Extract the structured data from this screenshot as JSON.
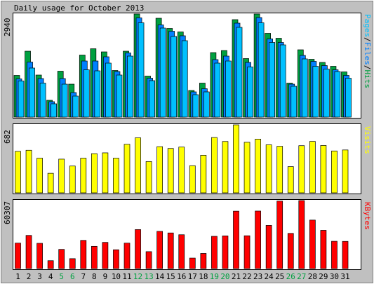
{
  "title": "Daily usage for October 2013",
  "colors": {
    "background": "#c0c0c0",
    "panel": "#ffffff",
    "hits": "#00a040",
    "files": "#0080ff",
    "pages": "#00c0ff",
    "visits": "#ffff00",
    "kbytes": "#ff0000",
    "weekday_label": "#000000",
    "weekend_label": "#00a040"
  },
  "chart_data": [
    {
      "type": "bar",
      "name": "hits_files_pages",
      "ymax_label": "2940",
      "legend": {
        "pages": "Pages",
        "sep1": "/",
        "files": "Files",
        "sep2": "/",
        "hits": "Hits"
      },
      "ylim": [
        0,
        2940
      ],
      "categories": [
        "1",
        "2",
        "3",
        "4",
        "5",
        "6",
        "7",
        "8",
        "9",
        "10",
        "11",
        "12",
        "13",
        "14",
        "15",
        "16",
        "17",
        "18",
        "19",
        "20",
        "21",
        "22",
        "23",
        "24",
        "25",
        "26",
        "27",
        "28",
        "29",
        "30",
        "31"
      ],
      "series": [
        {
          "name": "Hits",
          "values": [
            1190,
            1880,
            1200,
            480,
            1310,
            940,
            1770,
            1950,
            1860,
            1330,
            1880,
            2940,
            1170,
            2820,
            2530,
            2430,
            760,
            970,
            1840,
            1900,
            2780,
            1670,
            2940,
            2390,
            2250,
            970,
            1920,
            1650,
            1560,
            1450,
            1290
          ]
        },
        {
          "name": "Files",
          "values": [
            1090,
            1570,
            1100,
            440,
            1100,
            700,
            1600,
            1600,
            1720,
            1300,
            1830,
            2830,
            1110,
            2630,
            2450,
            2320,
            720,
            810,
            1640,
            1740,
            2680,
            1560,
            2840,
            2230,
            2130,
            940,
            1760,
            1590,
            1470,
            1350,
            1190
          ]
        },
        {
          "name": "Pages",
          "values": [
            1030,
            1400,
            970,
            380,
            940,
            600,
            1350,
            1320,
            1540,
            1200,
            1740,
            2690,
            1040,
            2540,
            2300,
            2180,
            640,
            720,
            1540,
            1600,
            2560,
            1430,
            2690,
            2130,
            2060,
            880,
            1660,
            1450,
            1370,
            1300,
            1110
          ]
        }
      ]
    },
    {
      "type": "bar",
      "name": "visits",
      "ymax_label": "682",
      "legend": "Visits",
      "ylim": [
        0,
        682
      ],
      "categories": [
        "1",
        "2",
        "3",
        "4",
        "5",
        "6",
        "7",
        "8",
        "9",
        "10",
        "11",
        "12",
        "13",
        "14",
        "15",
        "16",
        "17",
        "18",
        "19",
        "20",
        "21",
        "22",
        "23",
        "24",
        "25",
        "26",
        "27",
        "28",
        "29",
        "30",
        "31"
      ],
      "series": [
        {
          "name": "Visits",
          "values": [
            416,
            427,
            348,
            196,
            338,
            269,
            348,
            393,
            401,
            348,
            487,
            552,
            314,
            463,
            445,
            459,
            272,
            377,
            555,
            515,
            682,
            507,
            539,
            482,
            467,
            263,
            473,
            516,
            475,
            420,
            430
          ]
        }
      ]
    },
    {
      "type": "bar",
      "name": "kbytes",
      "ymax_label": "60307",
      "legend": "KBytes",
      "ylim": [
        0,
        60307
      ],
      "categories": [
        "1",
        "2",
        "3",
        "4",
        "5",
        "6",
        "7",
        "8",
        "9",
        "10",
        "11",
        "12",
        "13",
        "14",
        "15",
        "16",
        "17",
        "18",
        "19",
        "20",
        "21",
        "22",
        "23",
        "24",
        "25",
        "26",
        "27",
        "28",
        "29",
        "30",
        "31"
      ],
      "series": [
        {
          "name": "KBytes",
          "values": [
            22600,
            29400,
            22400,
            7000,
            17000,
            8800,
            25000,
            19700,
            23200,
            16700,
            22600,
            34600,
            15000,
            33000,
            31600,
            30000,
            9300,
            13400,
            28600,
            29000,
            50900,
            29100,
            51000,
            38300,
            59800,
            31200,
            60307,
            43000,
            33900,
            24200,
            24100
          ]
        }
      ]
    }
  ],
  "x_labels": [
    {
      "text": "1",
      "weekend": false
    },
    {
      "text": "2",
      "weekend": false
    },
    {
      "text": "3",
      "weekend": false
    },
    {
      "text": "4",
      "weekend": false
    },
    {
      "text": "5",
      "weekend": true
    },
    {
      "text": "6",
      "weekend": true
    },
    {
      "text": "7",
      "weekend": false
    },
    {
      "text": "8",
      "weekend": false
    },
    {
      "text": "9",
      "weekend": false
    },
    {
      "text": "10",
      "weekend": false
    },
    {
      "text": "11",
      "weekend": false
    },
    {
      "text": "12",
      "weekend": true
    },
    {
      "text": "13",
      "weekend": true
    },
    {
      "text": "14",
      "weekend": false
    },
    {
      "text": "15",
      "weekend": false
    },
    {
      "text": "16",
      "weekend": false
    },
    {
      "text": "17",
      "weekend": false
    },
    {
      "text": "18",
      "weekend": false
    },
    {
      "text": "19",
      "weekend": true
    },
    {
      "text": "20",
      "weekend": true
    },
    {
      "text": "21",
      "weekend": false
    },
    {
      "text": "22",
      "weekend": false
    },
    {
      "text": "23",
      "weekend": false
    },
    {
      "text": "24",
      "weekend": false
    },
    {
      "text": "25",
      "weekend": false
    },
    {
      "text": "26",
      "weekend": true
    },
    {
      "text": "27",
      "weekend": true
    },
    {
      "text": "28",
      "weekend": false
    },
    {
      "text": "29",
      "weekend": false
    },
    {
      "text": "30",
      "weekend": false
    },
    {
      "text": "31",
      "weekend": false
    }
  ]
}
